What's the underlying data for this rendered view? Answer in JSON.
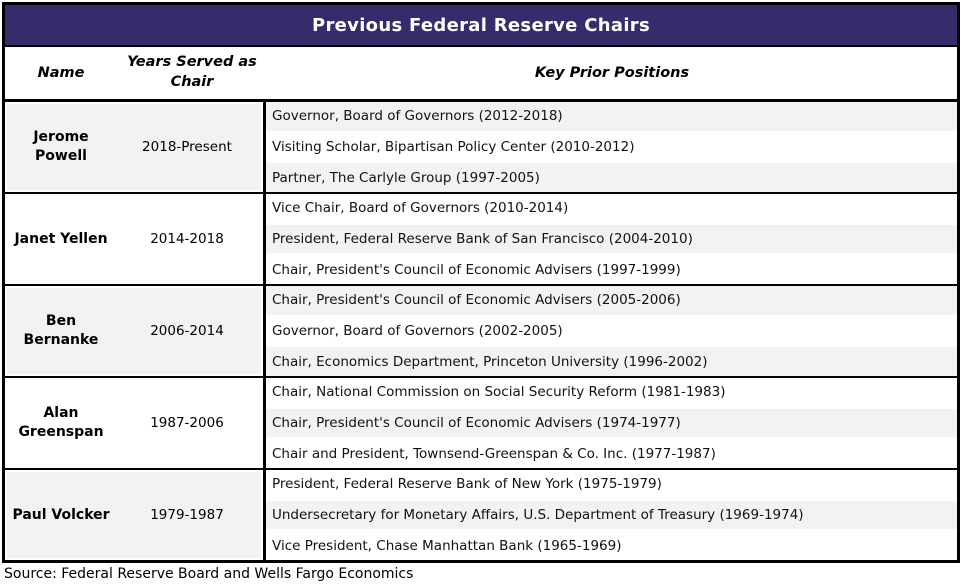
{
  "title": "Previous Federal Reserve Chairs",
  "header": {
    "name": "Name",
    "years": "Years Served as Chair",
    "positions": "Key Prior Positions"
  },
  "source": "Source: Federal Reserve Board and Wells Fargo Economics",
  "colors": {
    "title_bg": "#362b6b",
    "title_text": "#ffffff",
    "stripe": "#f2f2f2",
    "border": "#000000"
  },
  "chairs": [
    {
      "name": "Jerome Powell",
      "years": "2018-Present",
      "shaded": true,
      "positions": [
        {
          "text": "Governor, Board of Governors (2012-2018)",
          "shaded": true
        },
        {
          "text": "Visiting Scholar, Bipartisan Policy Center (2010-2012)",
          "shaded": false
        },
        {
          "text": "Partner, The Carlyle Group (1997-2005)",
          "shaded": true
        }
      ]
    },
    {
      "name": "Janet Yellen",
      "years": "2014-2018",
      "shaded": false,
      "positions": [
        {
          "text": "Vice Chair, Board of Governors (2010-2014)",
          "shaded": false
        },
        {
          "text": "President, Federal Reserve Bank of San Francisco (2004-2010)",
          "shaded": true
        },
        {
          "text": "Chair, President's Council of Economic Advisers (1997-1999)",
          "shaded": false
        }
      ]
    },
    {
      "name": "Ben Bernanke",
      "years": "2006-2014",
      "shaded": true,
      "positions": [
        {
          "text": "Chair, President's Council of Economic Advisers (2005-2006)",
          "shaded": true
        },
        {
          "text": "Governor, Board of Governors (2002-2005)",
          "shaded": false
        },
        {
          "text": "Chair, Economics Department, Princeton University (1996-2002)",
          "shaded": true
        }
      ]
    },
    {
      "name": "Alan Greenspan",
      "years": "1987-2006",
      "shaded": false,
      "positions": [
        {
          "text": "Chair, National Commission on Social Security Reform (1981-1983)",
          "shaded": false
        },
        {
          "text": "Chair, President's Council of Economic Advisers (1974-1977)",
          "shaded": true
        },
        {
          "text": "Chair and President, Townsend-Greenspan & Co. Inc. (1977-1987)",
          "shaded": false
        }
      ]
    },
    {
      "name": "Paul Volcker",
      "years": "1979-1987",
      "shaded": true,
      "positions": [
        {
          "text": "President, Federal Reserve Bank of New York (1975-1979)",
          "shaded": false
        },
        {
          "text": "Undersecretary for Monetary Affairs, U.S. Department of Treasury (1969-1974)",
          "shaded": true
        },
        {
          "text": "Vice President, Chase Manhattan Bank (1965-1969)",
          "shaded": false
        }
      ]
    }
  ],
  "chart_data": {
    "type": "table",
    "title": "Previous Federal Reserve Chairs",
    "columns": [
      "Name",
      "Years Served as Chair",
      "Key Prior Positions"
    ],
    "rows": [
      [
        "Jerome Powell",
        "2018-Present",
        "Governor, Board of Governors (2012-2018); Visiting Scholar, Bipartisan Policy Center (2010-2012); Partner, The Carlyle Group (1997-2005)"
      ],
      [
        "Janet Yellen",
        "2014-2018",
        "Vice Chair, Board of Governors (2010-2014); President, Federal Reserve Bank of San Francisco (2004-2010); Chair, President's Council of Economic Advisers (1997-1999)"
      ],
      [
        "Ben Bernanke",
        "2006-2014",
        "Chair, President's Council of Economic Advisers (2005-2006); Governor, Board of Governors (2002-2005); Chair, Economics Department, Princeton University (1996-2002)"
      ],
      [
        "Alan Greenspan",
        "1987-2006",
        "Chair, National Commission on Social Security Reform (1981-1983); Chair, President's Council of Economic Advisers (1974-1977); Chair and President, Townsend-Greenspan & Co. Inc. (1977-1987)"
      ],
      [
        "Paul Volcker",
        "1979-1987",
        "President, Federal Reserve Bank of New York (1975-1979); Undersecretary for Monetary Affairs, U.S. Department of Treasury (1969-1974); Vice President, Chase Manhattan Bank (1965-1969)"
      ]
    ],
    "source": "Source: Federal Reserve Board and Wells Fargo Economics"
  }
}
